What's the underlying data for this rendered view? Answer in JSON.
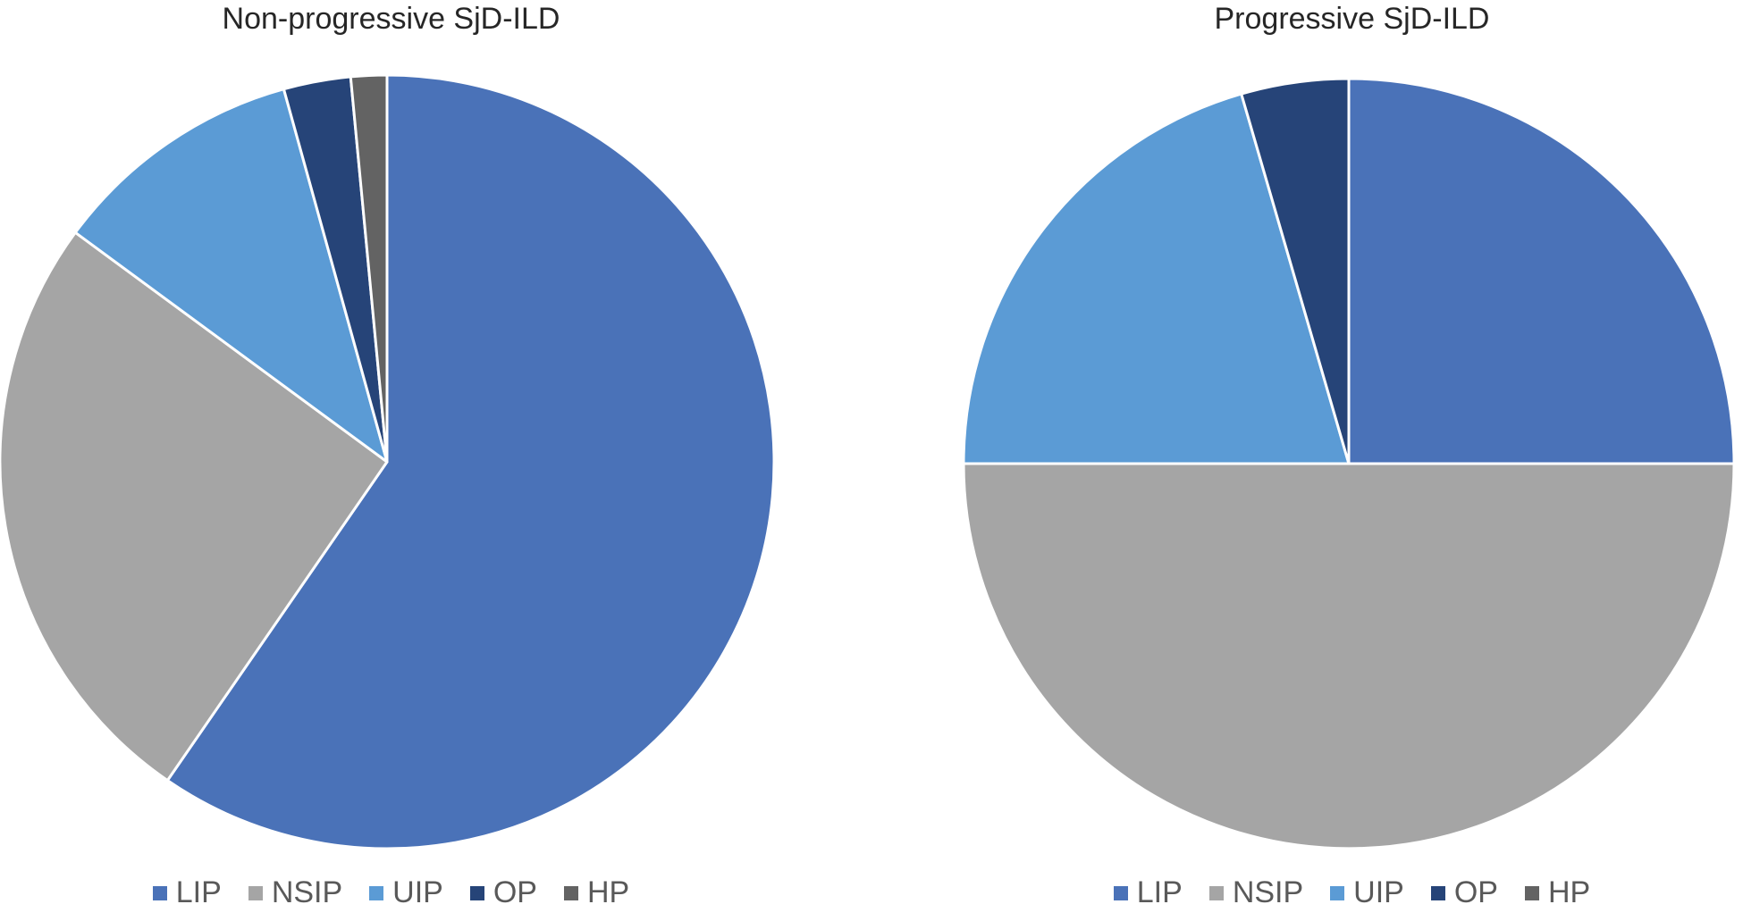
{
  "chart_data": [
    {
      "type": "pie",
      "title": "Non-progressive SjD-ILD",
      "categories": [
        "LIP",
        "NSIP",
        "UIP",
        "OP",
        "HP"
      ],
      "values": [
        59.6,
        25.5,
        10.6,
        2.8,
        1.5
      ],
      "colors": [
        "#4a72b8",
        "#a5a5a5",
        "#5b9bd5",
        "#264478",
        "#636363"
      ],
      "legend_position": "bottom"
    },
    {
      "type": "pie",
      "title": "Progressive SjD-ILD",
      "categories": [
        "LIP",
        "NSIP",
        "UIP",
        "OP",
        "HP"
      ],
      "values": [
        25,
        50,
        20.5,
        4.5,
        0
      ],
      "colors": [
        "#4a72b8",
        "#a5a5a5",
        "#5b9bd5",
        "#264478",
        "#636363"
      ],
      "legend_position": "bottom"
    }
  ]
}
